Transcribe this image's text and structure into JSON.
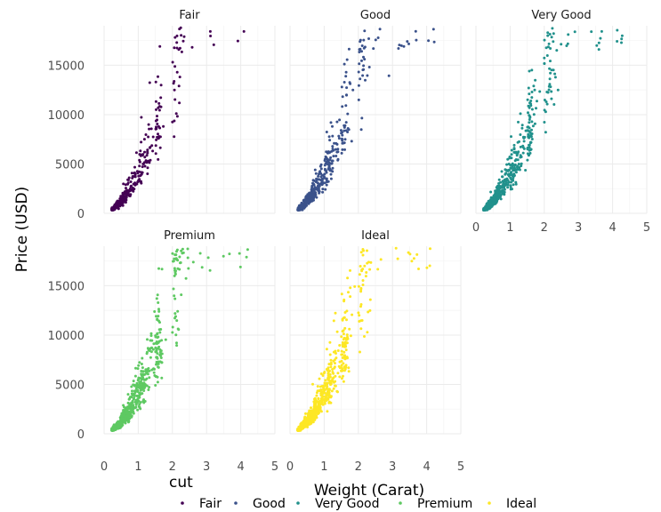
{
  "chart_data": {
    "type": "scatter",
    "facet_variable": "cut",
    "xlabel": "Weight (Carat)",
    "ylabel": "Price (USD)",
    "xlim": [
      0,
      5
    ],
    "ylim": [
      0,
      19000
    ],
    "x_ticks": [
      0,
      1,
      2,
      3,
      4,
      5
    ],
    "y_ticks": [
      0,
      5000,
      10000,
      15000
    ],
    "y_tick_labels": [
      "0",
      "5000",
      "10000",
      "15000"
    ],
    "grid": true,
    "legend": {
      "title": "cut",
      "placement": "bottom"
    },
    "facets": [
      {
        "name": "Fair",
        "color": "#440154"
      },
      {
        "name": "Good",
        "color": "#3b528b"
      },
      {
        "name": "Very Good",
        "color": "#21918c"
      },
      {
        "name": "Premium",
        "color": "#5ec962"
      },
      {
        "name": "Ideal",
        "color": "#fde725"
      }
    ]
  }
}
